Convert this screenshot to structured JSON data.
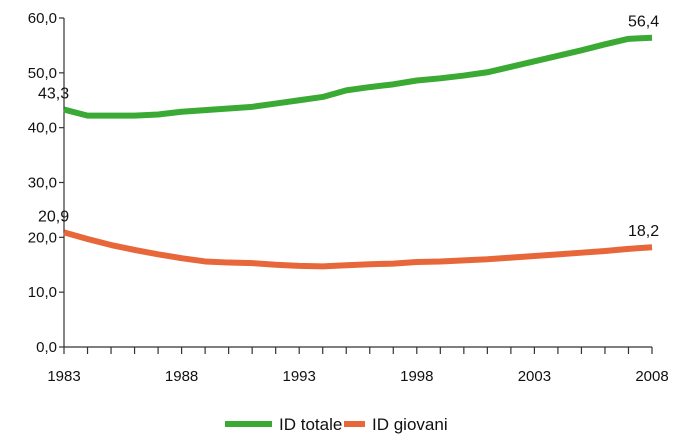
{
  "chart_data": {
    "type": "line",
    "title": "",
    "xlabel": "",
    "ylabel": "",
    "x": [
      1983,
      1984,
      1985,
      1986,
      1987,
      1988,
      1989,
      1990,
      1991,
      1992,
      1993,
      1994,
      1995,
      1996,
      1997,
      1998,
      1999,
      2000,
      2001,
      2002,
      2003,
      2004,
      2005,
      2006,
      2007,
      2008
    ],
    "xlim": [
      1983,
      2008
    ],
    "ylim": [
      0,
      60
    ],
    "x_ticks": [
      "1983",
      "1988",
      "1993",
      "1998",
      "2003",
      "2008"
    ],
    "y_ticks": [
      "0,0",
      "10,0",
      "20,0",
      "30,0",
      "40,0",
      "50,0",
      "60,0"
    ],
    "y_tick_values": [
      0,
      10,
      20,
      30,
      40,
      50,
      60
    ],
    "x_tick_values": [
      1983,
      1988,
      1993,
      1998,
      2003,
      2008
    ],
    "grid": false,
    "legend_position": "bottom",
    "series": [
      {
        "name": "ID totale",
        "color": "#3aaa35",
        "values": [
          43.3,
          42.2,
          42.2,
          42.2,
          42.4,
          42.9,
          43.2,
          43.5,
          43.8,
          44.4,
          45.0,
          45.6,
          46.8,
          47.4,
          47.9,
          48.6,
          49.0,
          49.5,
          50.1,
          51.1,
          52.1,
          53.1,
          54.1,
          55.2,
          56.2,
          56.4
        ],
        "labels": [
          {
            "index": 0,
            "text": "43,3"
          },
          {
            "index": 25,
            "text": "56,4"
          }
        ]
      },
      {
        "name": "ID giovani",
        "color": "#e8673a",
        "values": [
          20.9,
          19.7,
          18.6,
          17.7,
          16.9,
          16.2,
          15.6,
          15.4,
          15.3,
          15.0,
          14.8,
          14.7,
          14.9,
          15.1,
          15.2,
          15.5,
          15.6,
          15.8,
          16.0,
          16.3,
          16.6,
          16.9,
          17.2,
          17.5,
          17.9,
          18.2
        ],
        "labels": [
          {
            "index": 0,
            "text": "20,9"
          },
          {
            "index": 25,
            "text": "18,2"
          }
        ]
      }
    ]
  }
}
